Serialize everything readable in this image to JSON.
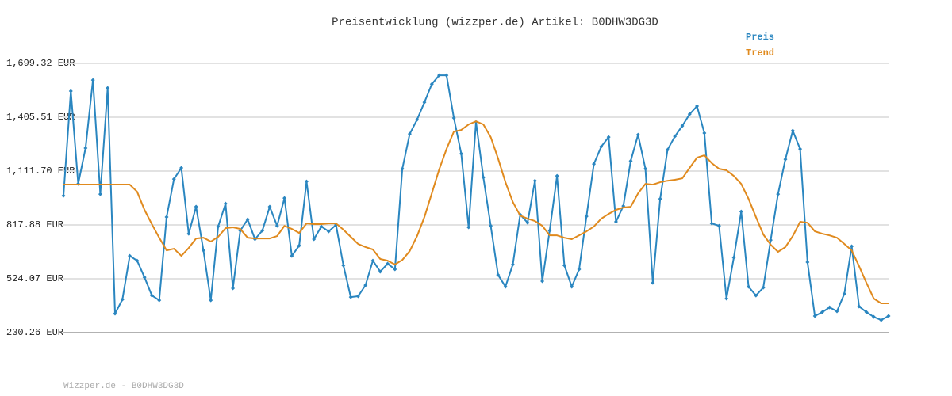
{
  "chart_data": {
    "type": "line",
    "title": "Preisentwicklung (wizzper.de) Artikel: B0DHW3DG3D",
    "footer": "Wizzper.de - B0DHW3DG3D",
    "categories": [
      null,
      null,
      null,
      null,
      null,
      null,
      null,
      null,
      null,
      null,
      null,
      null,
      null,
      null,
      null,
      null,
      null,
      null,
      null,
      null,
      null,
      null,
      null,
      null,
      null,
      null,
      null,
      null,
      null,
      null,
      null,
      null,
      null,
      null,
      null,
      null,
      null,
      null,
      null,
      null,
      null,
      null,
      null,
      null,
      null,
      null,
      null,
      null,
      null,
      null,
      null,
      null,
      null,
      null,
      null,
      null,
      null,
      null,
      null,
      null,
      null,
      null,
      null,
      null,
      null,
      null,
      null,
      null,
      null,
      null,
      null,
      null,
      null,
      null,
      null,
      null,
      null,
      null,
      null,
      null,
      null,
      null,
      null,
      null,
      null,
      null,
      null,
      null,
      null,
      null,
      null,
      null,
      null,
      null,
      null,
      null,
      null,
      null,
      null,
      null,
      null,
      null,
      null,
      null,
      null,
      null,
      null,
      null,
      null,
      null,
      null,
      null,
      null
    ],
    "series": [
      {
        "name": "Preis",
        "color": "#2a86c0",
        "markers": true,
        "values": [
          977,
          1548,
          1042,
          1237,
          1608,
          986,
          1565,
          334,
          411,
          649,
          623,
          532,
          433,
          407,
          861,
          1068,
          1129,
          770,
          917,
          679,
          407,
          809,
          934,
          472,
          787,
          848,
          740,
          787,
          917,
          813,
          964,
          649,
          705,
          1055,
          740,
          809,
          783,
          818,
          597,
          424,
          429,
          489,
          623,
          563,
          606,
          576,
          1124,
          1314,
          1392,
          1487,
          1586,
          1634,
          1634,
          1401,
          1206,
          805,
          1379,
          1077,
          813,
          545,
          481,
          602,
          874,
          830,
          1059,
          511,
          787,
          1085,
          597,
          481,
          576,
          865,
          1150,
          1245,
          1297,
          835,
          921,
          1167,
          1310,
          1124,
          502,
          960,
          1228,
          1301,
          1358,
          1422,
          1466,
          1319,
          826,
          813,
          416,
          640,
          891,
          481,
          433,
          476,
          735,
          986,
          1176,
          1332,
          1232,
          615,
          321,
          342,
          368,
          347,
          442,
          701,
          373,
          342,
          316,
          299,
          321
        ]
      },
      {
        "name": "Trend",
        "color": "#e08a1e",
        "markers": false,
        "values": [
          1038,
          1038,
          1038,
          1038,
          1038,
          1038,
          1038,
          1038,
          1038,
          1038,
          999,
          900,
          822,
          748,
          679,
          688,
          649,
          692,
          744,
          748,
          727,
          753,
          800,
          805,
          796,
          748,
          744,
          744,
          744,
          757,
          813,
          796,
          774,
          826,
          822,
          822,
          826,
          826,
          792,
          753,
          714,
          697,
          684,
          632,
          623,
          602,
          627,
          675,
          757,
          861,
          990,
          1120,
          1232,
          1327,
          1336,
          1366,
          1383,
          1366,
          1297,
          1180,
          1051,
          943,
          869,
          852,
          839,
          813,
          761,
          761,
          748,
          740,
          761,
          783,
          809,
          852,
          878,
          900,
          913,
          917,
          990,
          1042,
          1038,
          1051,
          1059,
          1064,
          1072,
          1129,
          1185,
          1198,
          1155,
          1124,
          1116,
          1085,
          1042,
          960,
          861,
          766,
          710,
          671,
          697,
          757,
          835,
          830,
          783,
          770,
          761,
          748,
          714,
          679,
          593,
          502,
          416,
          390,
          390
        ]
      }
    ],
    "ylim": [
      230.26,
      1699.32
    ],
    "yticks": [
      {
        "value": 230.26,
        "label": "230.26 EUR"
      },
      {
        "value": 524.07,
        "label": "524.07 EUR"
      },
      {
        "value": 817.88,
        "label": "817.88 EUR"
      },
      {
        "value": 1111.7,
        "label": "1,111.70 EUR"
      },
      {
        "value": 1405.51,
        "label": "1,405.51 EUR"
      },
      {
        "value": 1699.32,
        "label": "1,699.32 EUR"
      }
    ],
    "grid": true,
    "legend": "top-right"
  }
}
